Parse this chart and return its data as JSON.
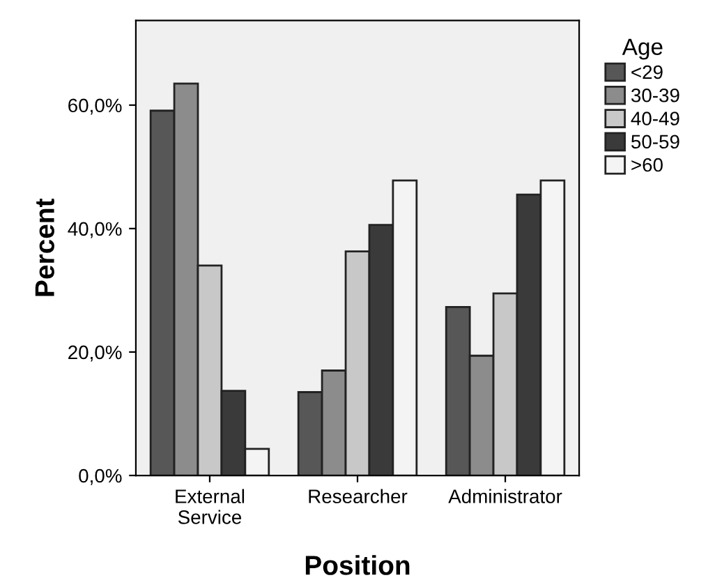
{
  "chart_data": {
    "type": "bar",
    "xlabel": "Position",
    "ylabel": "Percent",
    "legend_title": "Age",
    "categories": [
      "External\nService",
      "Researcher",
      "Administrator"
    ],
    "series": [
      {
        "name": "<29",
        "color": "#575757",
        "values": [
          59.1,
          13.5,
          27.3
        ]
      },
      {
        "name": "30-39",
        "color": "#8c8c8c",
        "values": [
          63.5,
          17.0,
          19.4
        ]
      },
      {
        "name": "40-49",
        "color": "#c8c8c8",
        "values": [
          34.0,
          36.3,
          29.5
        ]
      },
      {
        "name": "50-59",
        "color": "#3a3a3a",
        "values": [
          13.7,
          40.6,
          45.5
        ]
      },
      {
        "name": ">60",
        "color": "#f4f4f4",
        "values": [
          4.3,
          47.8,
          47.8
        ]
      }
    ],
    "ylim": [
      0,
      73.7
    ],
    "yticks": [
      {
        "value": 0,
        "label": "0,0%"
      },
      {
        "value": 20,
        "label": "20,0%"
      },
      {
        "value": 40,
        "label": "40,0%"
      },
      {
        "value": 60,
        "label": "60,0%"
      }
    ],
    "grid": false,
    "legend": "top right"
  }
}
